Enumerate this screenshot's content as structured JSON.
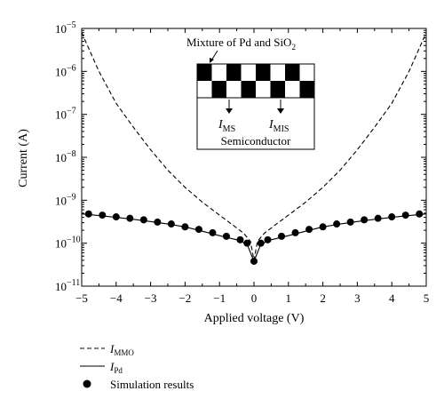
{
  "chart_data": {
    "type": "line",
    "xlabel": "Applied voltage (V)",
    "ylabel": "Current (A)",
    "xlim": [
      -5,
      5
    ],
    "ylim": [
      1e-11,
      1e-05
    ],
    "yscale": "log",
    "x_ticks": [
      -5,
      -4,
      -3,
      -2,
      -1,
      0,
      1,
      2,
      3,
      4,
      5
    ],
    "x_tick_labels": [
      "−5",
      "−4",
      "−3",
      "−2",
      "−1",
      "0",
      "1",
      "2",
      "3",
      "4",
      "5"
    ],
    "y_tick_bases": [
      "10",
      "10",
      "10",
      "10",
      "10",
      "10",
      "10"
    ],
    "y_tick_exps": [
      "−11",
      "−10",
      "−9",
      "−8",
      "−7",
      "−6",
      "−5"
    ],
    "y_ticks": [
      1e-11,
      1e-10,
      1e-09,
      1e-08,
      1e-07,
      1e-06,
      1e-05
    ],
    "grid": false,
    "legend_position": "bottom-left, below plot",
    "series": [
      {
        "name_main": "I",
        "name_sub": "MMO",
        "style": "dashed",
        "x": [
          -5,
          -4.5,
          -4,
          -3.5,
          -3,
          -2.5,
          -2,
          -1.5,
          -1,
          -0.6,
          -0.3,
          -0.1,
          0,
          0.1,
          0.3,
          0.6,
          1,
          1.5,
          2,
          2.5,
          3,
          3.5,
          4,
          4.5,
          5
        ],
        "y": [
          8e-06,
          1e-06,
          1.8e-07,
          5e-08,
          1.5e-08,
          5e-09,
          2e-09,
          9e-10,
          4.5e-10,
          2.6e-10,
          1.7e-10,
          1.1e-10,
          4e-11,
          1.1e-10,
          1.7e-10,
          2.6e-10,
          4.5e-10,
          9e-10,
          2e-09,
          5e-09,
          1.5e-08,
          5e-08,
          1.8e-07,
          1e-06,
          8e-06
        ]
      },
      {
        "name_main": "I",
        "name_sub": "Pd",
        "style": "solid",
        "x": [
          -5,
          -4.5,
          -4,
          -3.5,
          -3,
          -2.5,
          -2,
          -1.5,
          -1,
          -0.5,
          -0.2,
          0,
          0.2,
          0.5,
          1,
          1.5,
          2,
          2.5,
          3,
          3.5,
          4,
          4.5,
          5
        ],
        "y": [
          4.8e-10,
          4.4e-10,
          4e-10,
          3.6e-10,
          3.2e-10,
          2.8e-10,
          2.4e-10,
          1.9e-10,
          1.5e-10,
          1.2e-10,
          9.5e-11,
          3.8e-11,
          9.5e-11,
          1.2e-10,
          1.5e-10,
          1.9e-10,
          2.4e-10,
          2.8e-10,
          3.2e-10,
          3.6e-10,
          4e-10,
          4.4e-10,
          4.8e-10
        ]
      },
      {
        "name": "Simulation results",
        "style": "markers",
        "x": [
          -4.8,
          -4.4,
          -4,
          -3.6,
          -3.2,
          -2.8,
          -2.4,
          -2,
          -1.6,
          -1.2,
          -0.8,
          -0.4,
          -0.2,
          0,
          0.2,
          0.4,
          0.8,
          1.2,
          1.6,
          2,
          2.4,
          2.8,
          3.2,
          3.6,
          4,
          4.4,
          4.8
        ],
        "y": [
          4.8e-10,
          4.5e-10,
          4.1e-10,
          3.8e-10,
          3.5e-10,
          3.1e-10,
          2.8e-10,
          2.4e-10,
          2.1e-10,
          1.75e-10,
          1.45e-10,
          1.2e-10,
          1e-10,
          3.8e-11,
          1e-10,
          1.2e-10,
          1.45e-10,
          1.75e-10,
          2.1e-10,
          2.4e-10,
          2.8e-10,
          3.1e-10,
          3.5e-10,
          3.8e-10,
          4.1e-10,
          4.5e-10,
          4.8e-10
        ]
      }
    ],
    "inset": {
      "top_label_main": "Mixture of Pd and SiO",
      "top_label_sub": "2",
      "current_left_main": "I",
      "current_left_sub": "MS",
      "current_right_main": "I",
      "current_right_sub": "MIS",
      "bottom_label": "Semiconductor"
    }
  }
}
